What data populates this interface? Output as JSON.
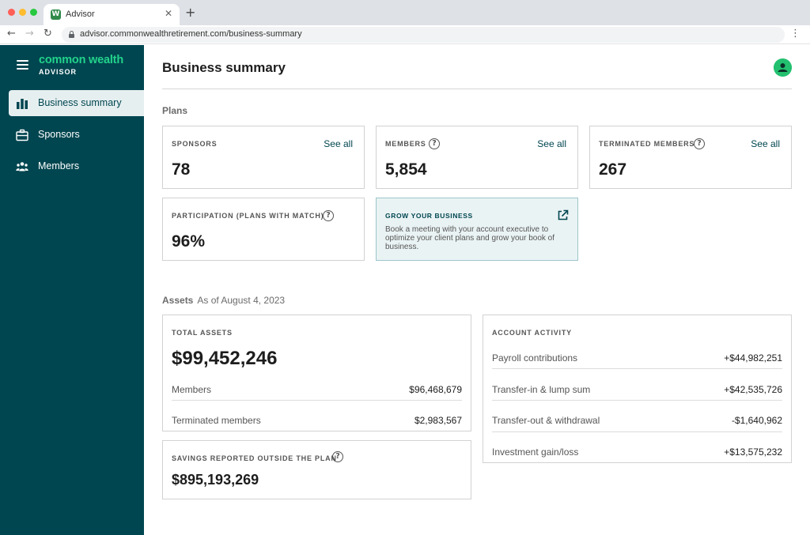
{
  "browser": {
    "tab_title": "Advisor",
    "tab_favicon_letter": "W",
    "url": "advisor.commonwealthretirement.com/business-summary"
  },
  "sidebar": {
    "logo_main": "common wealth",
    "logo_sub": "ADVISOR",
    "items": [
      {
        "label": "Business summary",
        "icon": "bar-chart-icon",
        "active": true
      },
      {
        "label": "Sponsors",
        "icon": "briefcase-icon",
        "active": false
      },
      {
        "label": "Members",
        "icon": "people-icon",
        "active": false
      }
    ]
  },
  "header": {
    "title": "Business summary"
  },
  "plans": {
    "section_label": "Plans",
    "sponsors": {
      "label": "SPONSORS",
      "value": "78",
      "link": "See all"
    },
    "members": {
      "label": "MEMBERS",
      "value": "5,854",
      "link": "See all"
    },
    "terminated": {
      "label": "TERMINATED MEMBERS",
      "value": "267",
      "link": "See all"
    },
    "participation": {
      "label": "PARTICIPATION (PLANS WITH MATCH)",
      "value": "96%"
    },
    "grow": {
      "title": "GROW YOUR BUSINESS",
      "body": "Book a meeting with your account executive to optimize your client plans and grow your book of business."
    }
  },
  "assets": {
    "section_label": "Assets",
    "as_of": "As of August 4, 2023",
    "total": {
      "label": "TOTAL ASSETS",
      "value": "$99,452,246",
      "rows": [
        {
          "label": "Members",
          "value": "$96,468,679"
        },
        {
          "label": "Terminated members",
          "value": "$2,983,567"
        }
      ]
    },
    "outside": {
      "label": "SAVINGS REPORTED OUTSIDE THE PLAN",
      "value": "$895,193,269"
    },
    "activity": {
      "label": "ACCOUNT ACTIVITY",
      "rows": [
        {
          "label": "Payroll contributions",
          "value": "+$44,982,251"
        },
        {
          "label": "Transfer-in & lump sum",
          "value": "+$42,535,726"
        },
        {
          "label": "Transfer-out & withdrawal",
          "value": "-$1,640,962"
        },
        {
          "label": "Investment gain/loss",
          "value": "+$13,575,232"
        }
      ]
    }
  },
  "colors": {
    "sidebar_bg": "#004650",
    "brand_green": "#22d38b",
    "avatar": "#22c06f",
    "active_nav_bg": "#e6eff0",
    "grow_card_bg": "#eaf3f4"
  },
  "icons": {
    "help": "help-icon",
    "external": "external-link-icon",
    "avatar": "user-avatar-icon",
    "help_glyph": "?"
  }
}
